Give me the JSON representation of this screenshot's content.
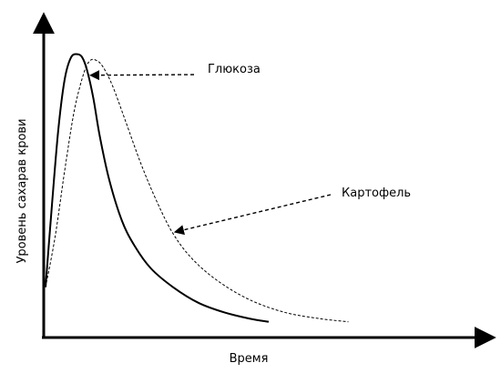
{
  "chart_data": {
    "type": "line",
    "title": "",
    "xlabel": "Время",
    "ylabel": "Уровень сахарав крови",
    "xlim": [
      0,
      100
    ],
    "ylim": [
      0,
      100
    ],
    "grid": false,
    "legend": "none",
    "series": [
      {
        "name": "Глюкоза",
        "style": "solid",
        "color": "#000000",
        "x": [
          0,
          2,
          4,
          6,
          8,
          10,
          11.5,
          13,
          15,
          17,
          20,
          24,
          28,
          33,
          40,
          48,
          56,
          64,
          70
        ],
        "y": [
          16,
          42,
          66,
          82,
          89,
          90,
          89,
          85,
          76,
          64,
          50,
          37,
          29,
          22,
          16,
          11,
          8,
          6,
          5
        ]
      },
      {
        "name": "Картофель",
        "style": "dashed",
        "color": "#000000",
        "x": [
          0,
          3,
          6,
          9,
          12,
          14,
          16,
          18,
          21,
          25,
          30,
          35,
          40,
          46,
          54,
          64,
          75,
          86,
          95
        ],
        "y": [
          16,
          32,
          53,
          72,
          84,
          88,
          88,
          86,
          80,
          69,
          55,
          43,
          33,
          25,
          18,
          12,
          8,
          6,
          5
        ]
      }
    ],
    "annotations": [
      {
        "text": "Глюкоза",
        "series": "Глюкоза",
        "point_x": 13.5
      },
      {
        "text": "Картофель",
        "series": "Картофель",
        "point_x": 40
      }
    ]
  }
}
